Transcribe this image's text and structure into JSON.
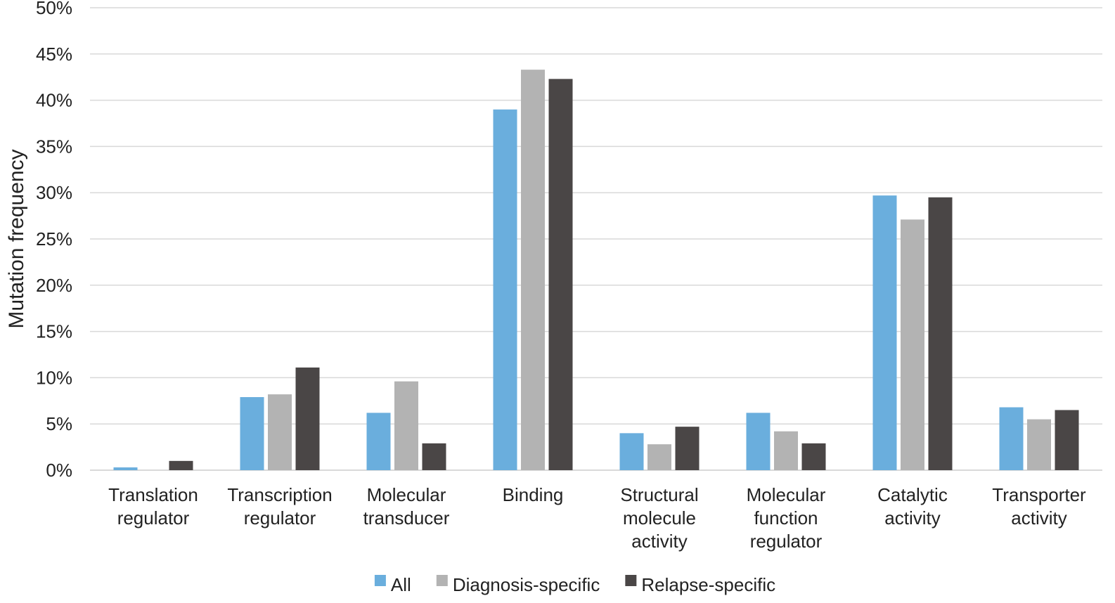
{
  "chart_data": {
    "type": "bar",
    "ylabel": "Mutation frequency",
    "ylim": [
      0,
      50
    ],
    "yticks": [
      "0%",
      "5%",
      "10%",
      "15%",
      "20%",
      "25%",
      "30%",
      "35%",
      "40%",
      "45%",
      "50%"
    ],
    "grid": true,
    "legend_position": "bottom",
    "categories": [
      [
        "Translation",
        "regulator"
      ],
      [
        "Transcription",
        "regulator"
      ],
      [
        "Molecular",
        "transducer"
      ],
      [
        "Binding"
      ],
      [
        "Structural",
        "molecule",
        "activity"
      ],
      [
        "Molecular",
        "function",
        "regulator"
      ],
      [
        "Catalytic",
        "activity"
      ],
      [
        "Transporter",
        "activity"
      ]
    ],
    "series": [
      {
        "name": "All",
        "color": "#6aaedd",
        "values": [
          0.3,
          7.9,
          6.2,
          39.0,
          4.0,
          6.2,
          29.7,
          6.8
        ]
      },
      {
        "name": "Diagnosis-specific",
        "color": "#b3b3b3",
        "values": [
          0,
          8.2,
          9.6,
          43.3,
          2.8,
          4.2,
          27.1,
          5.5
        ]
      },
      {
        "name": "Relapse-specific",
        "color": "#4a4646",
        "values": [
          1.0,
          11.1,
          2.9,
          42.3,
          4.7,
          2.9,
          29.5,
          6.5
        ]
      }
    ]
  }
}
